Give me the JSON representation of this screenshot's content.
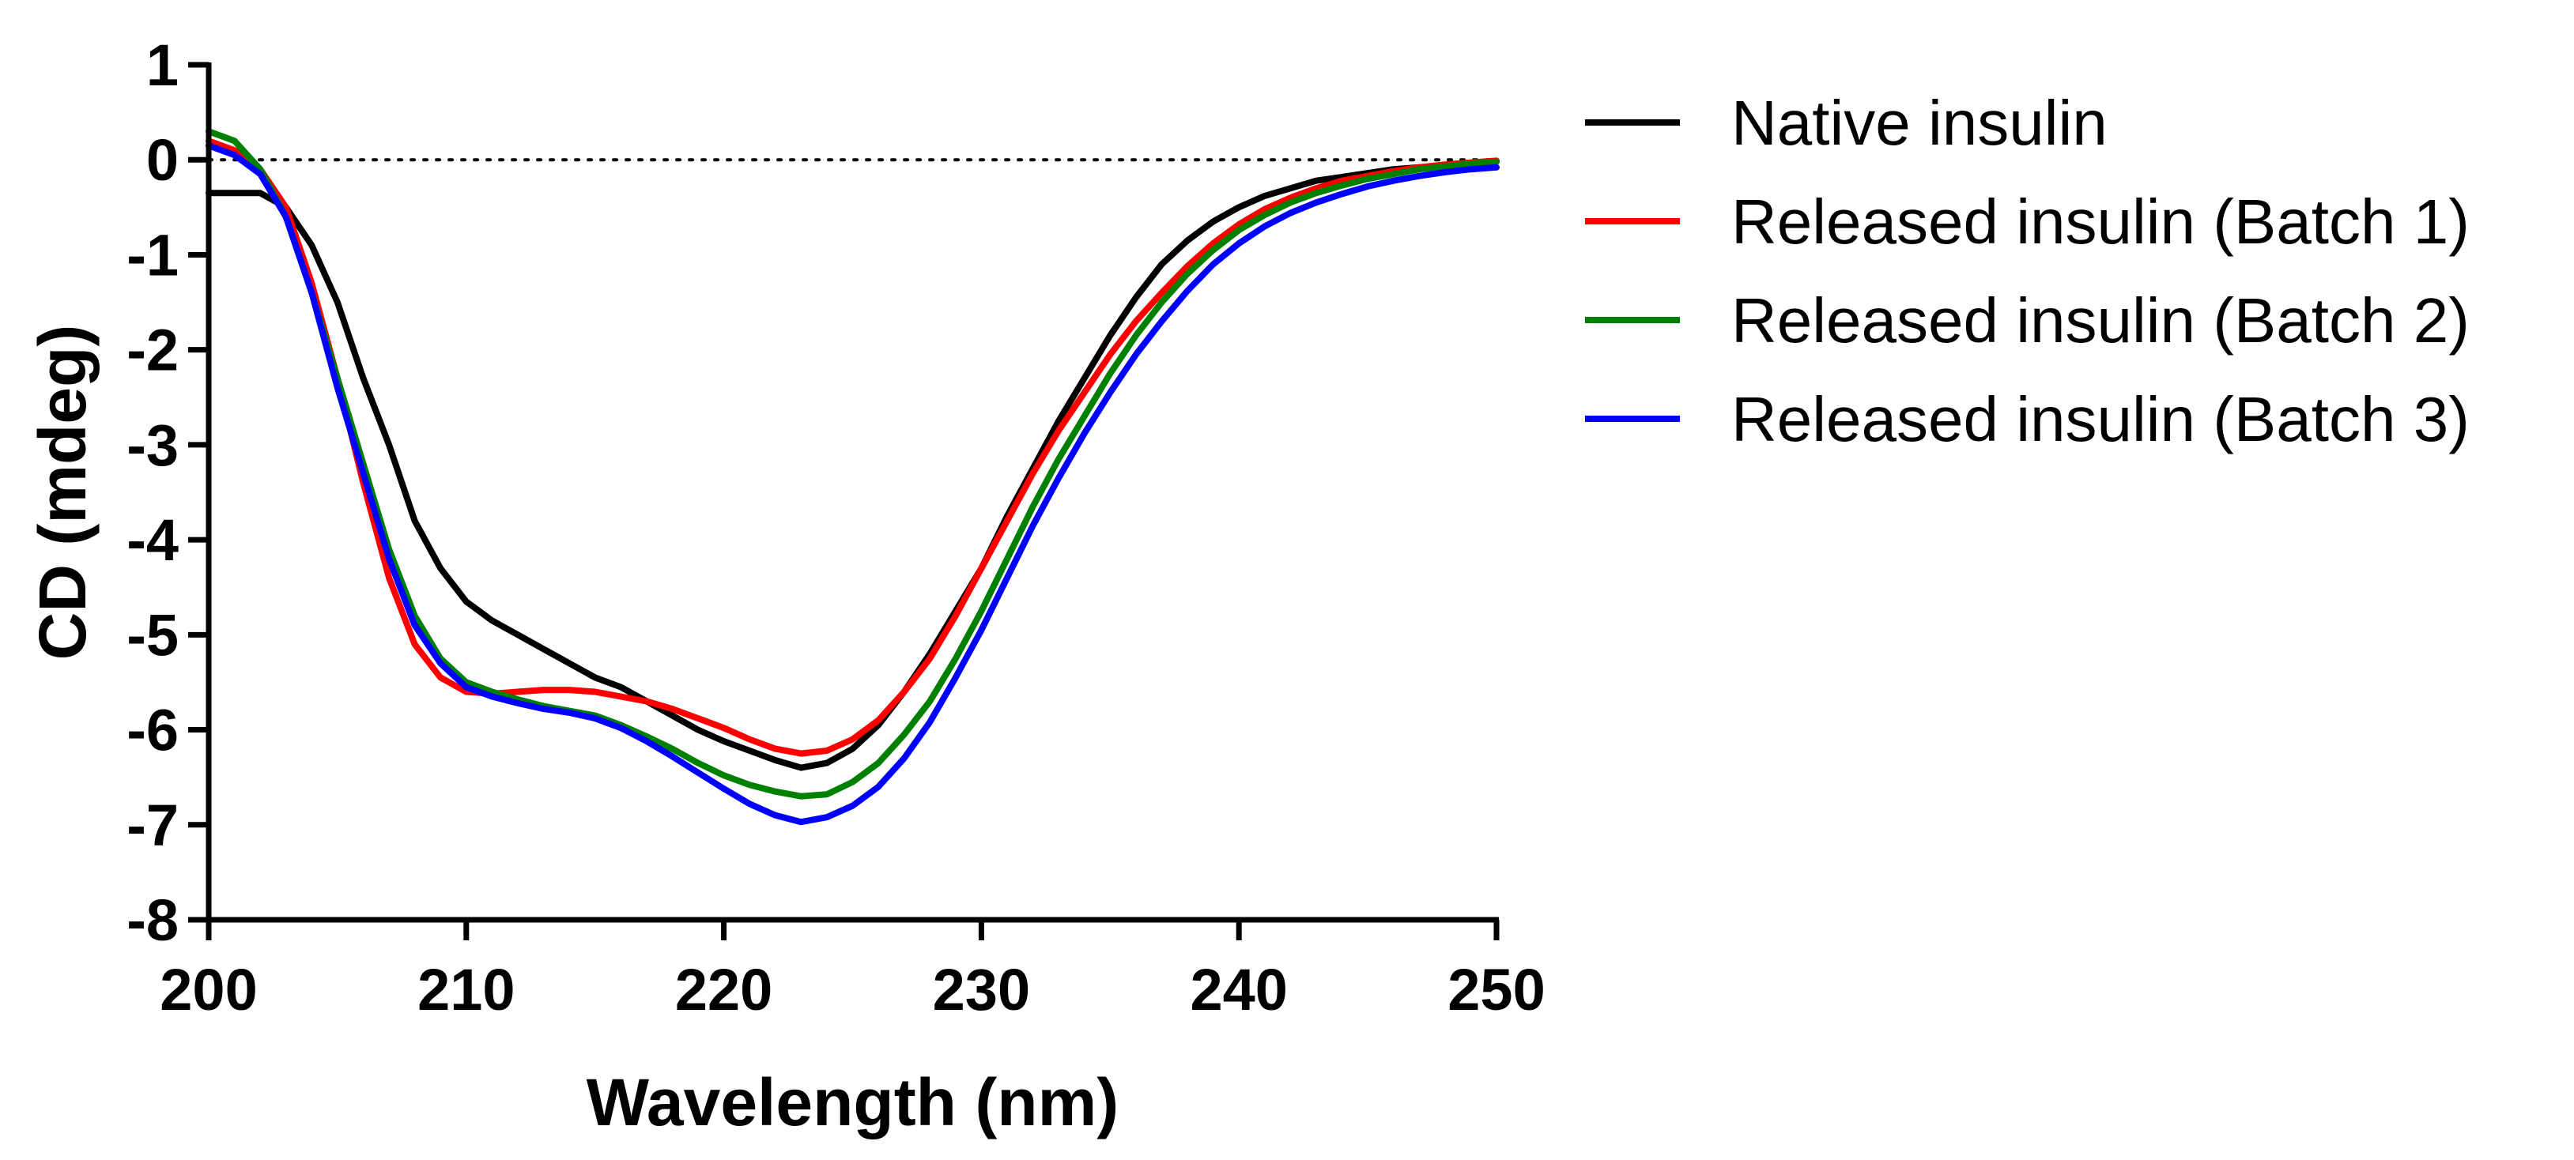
{
  "chart_data": {
    "type": "line",
    "xlabel": "Wavelength (nm)",
    "ylabel": "CD (mdeg)",
    "xlim": [
      200,
      250
    ],
    "ylim": [
      -8,
      1
    ],
    "xticks": [
      200,
      210,
      220,
      230,
      240,
      250
    ],
    "yticks": [
      1,
      0,
      -1,
      -2,
      -3,
      -4,
      -5,
      -6,
      -7,
      -8
    ],
    "zero_reference_line": "dotted",
    "legend_position": "right",
    "series": [
      {
        "name": "Native insulin",
        "color": "#000000",
        "x": [
          200,
          201,
          202,
          203,
          204,
          205,
          206,
          207,
          208,
          209,
          210,
          211,
          212,
          213,
          214,
          215,
          216,
          217,
          218,
          219,
          220,
          221,
          222,
          223,
          224,
          225,
          226,
          227,
          228,
          229,
          230,
          231,
          232,
          233,
          234,
          235,
          236,
          237,
          238,
          239,
          240,
          241,
          242,
          243,
          244,
          245,
          246,
          247,
          248,
          249,
          250
        ],
        "y": [
          -0.35,
          -0.35,
          -0.35,
          -0.5,
          -0.9,
          -1.5,
          -2.3,
          -3.0,
          -3.8,
          -4.3,
          -4.65,
          -4.85,
          -5.0,
          -5.15,
          -5.3,
          -5.45,
          -5.55,
          -5.7,
          -5.85,
          -6.0,
          -6.12,
          -6.22,
          -6.32,
          -6.4,
          -6.35,
          -6.2,
          -5.95,
          -5.6,
          -5.2,
          -4.75,
          -4.3,
          -3.75,
          -3.25,
          -2.75,
          -2.3,
          -1.85,
          -1.45,
          -1.1,
          -0.85,
          -0.65,
          -0.5,
          -0.38,
          -0.3,
          -0.22,
          -0.18,
          -0.14,
          -0.1,
          -0.08,
          -0.06,
          -0.04,
          -0.02
        ]
      },
      {
        "name": "Released insulin (Batch 1)",
        "color": "#ff0000",
        "x": [
          200,
          201,
          202,
          203,
          204,
          205,
          206,
          207,
          208,
          209,
          210,
          211,
          212,
          213,
          214,
          215,
          216,
          217,
          218,
          219,
          220,
          221,
          222,
          223,
          224,
          225,
          226,
          227,
          228,
          229,
          230,
          231,
          232,
          233,
          234,
          235,
          236,
          237,
          238,
          239,
          240,
          241,
          242,
          243,
          244,
          245,
          246,
          247,
          248,
          249,
          250
        ],
        "y": [
          0.2,
          0.1,
          -0.1,
          -0.5,
          -1.3,
          -2.3,
          -3.4,
          -4.4,
          -5.1,
          -5.45,
          -5.6,
          -5.62,
          -5.6,
          -5.58,
          -5.58,
          -5.6,
          -5.65,
          -5.7,
          -5.78,
          -5.88,
          -5.98,
          -6.1,
          -6.2,
          -6.25,
          -6.22,
          -6.1,
          -5.9,
          -5.6,
          -5.25,
          -4.8,
          -4.3,
          -3.8,
          -3.3,
          -2.85,
          -2.45,
          -2.05,
          -1.7,
          -1.4,
          -1.12,
          -0.88,
          -0.68,
          -0.52,
          -0.4,
          -0.3,
          -0.22,
          -0.17,
          -0.12,
          -0.08,
          -0.05,
          -0.03,
          -0.01
        ]
      },
      {
        "name": "Released insulin (Batch 2)",
        "color": "#008000",
        "x": [
          200,
          201,
          202,
          203,
          204,
          205,
          206,
          207,
          208,
          209,
          210,
          211,
          212,
          213,
          214,
          215,
          216,
          217,
          218,
          219,
          220,
          221,
          222,
          223,
          224,
          225,
          226,
          227,
          228,
          229,
          230,
          231,
          232,
          233,
          234,
          235,
          236,
          237,
          238,
          239,
          240,
          241,
          242,
          243,
          244,
          245,
          246,
          247,
          248,
          249,
          250
        ],
        "y": [
          0.3,
          0.2,
          -0.1,
          -0.6,
          -1.4,
          -2.3,
          -3.2,
          -4.1,
          -4.8,
          -5.25,
          -5.5,
          -5.6,
          -5.68,
          -5.75,
          -5.8,
          -5.85,
          -5.95,
          -6.07,
          -6.2,
          -6.35,
          -6.48,
          -6.58,
          -6.65,
          -6.7,
          -6.68,
          -6.55,
          -6.35,
          -6.05,
          -5.7,
          -5.25,
          -4.75,
          -4.2,
          -3.65,
          -3.15,
          -2.7,
          -2.25,
          -1.85,
          -1.5,
          -1.2,
          -0.95,
          -0.74,
          -0.58,
          -0.45,
          -0.35,
          -0.27,
          -0.2,
          -0.15,
          -0.1,
          -0.07,
          -0.04,
          -0.02
        ]
      },
      {
        "name": "Released insulin (Batch 3)",
        "color": "#0000ff",
        "x": [
          200,
          201,
          202,
          203,
          204,
          205,
          206,
          207,
          208,
          209,
          210,
          211,
          212,
          213,
          214,
          215,
          216,
          217,
          218,
          219,
          220,
          221,
          222,
          223,
          224,
          225,
          226,
          227,
          228,
          229,
          230,
          231,
          232,
          233,
          234,
          235,
          236,
          237,
          238,
          239,
          240,
          241,
          242,
          243,
          244,
          245,
          246,
          247,
          248,
          249,
          250
        ],
        "y": [
          0.15,
          0.05,
          -0.15,
          -0.6,
          -1.4,
          -2.4,
          -3.3,
          -4.2,
          -4.9,
          -5.3,
          -5.55,
          -5.65,
          -5.72,
          -5.78,
          -5.82,
          -5.88,
          -5.98,
          -6.12,
          -6.28,
          -6.45,
          -6.62,
          -6.78,
          -6.9,
          -6.97,
          -6.92,
          -6.8,
          -6.6,
          -6.3,
          -5.92,
          -5.45,
          -4.95,
          -4.4,
          -3.85,
          -3.35,
          -2.88,
          -2.45,
          -2.05,
          -1.7,
          -1.38,
          -1.1,
          -0.88,
          -0.7,
          -0.56,
          -0.45,
          -0.36,
          -0.28,
          -0.22,
          -0.17,
          -0.13,
          -0.1,
          -0.08
        ]
      }
    ]
  }
}
